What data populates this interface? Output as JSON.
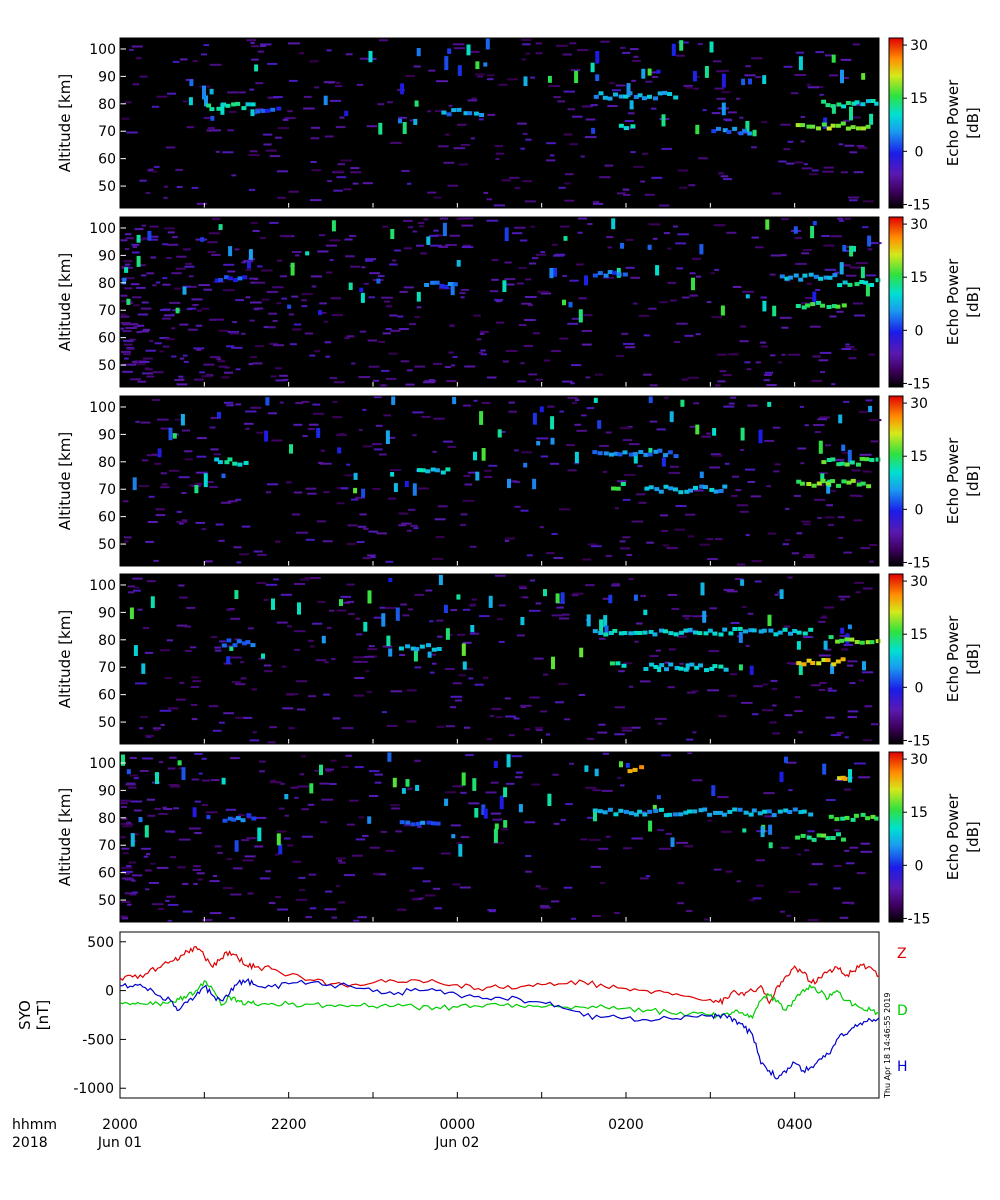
{
  "chart_data": [
    {
      "type": "heatmap",
      "panel": 1,
      "ylabel": "Altitude [km]",
      "ylim": [
        42,
        104
      ],
      "yticks": [
        50,
        60,
        70,
        80,
        90,
        100
      ],
      "colorbar": {
        "label_line1": "Echo Power",
        "label_line2": "[dB]",
        "ticks": [
          -15,
          0,
          15,
          30
        ],
        "range": [
          -16,
          32
        ]
      },
      "features": [
        {
          "t_start": 1.0,
          "t_end": 1.6,
          "alt": 79,
          "power": 14
        },
        {
          "t_start": 1.6,
          "t_end": 1.9,
          "alt": 78,
          "power": 5
        },
        {
          "t_start": 3.8,
          "t_end": 4.3,
          "alt": 77,
          "power": 8
        },
        {
          "t_start": 5.6,
          "t_end": 6.6,
          "alt": 83,
          "power": 10
        },
        {
          "t_start": 5.9,
          "t_end": 6.1,
          "alt": 71,
          "power": 16
        },
        {
          "t_start": 7.0,
          "t_end": 7.5,
          "alt": 70,
          "power": 6
        },
        {
          "t_start": 8.0,
          "t_end": 8.9,
          "alt": 72,
          "power": 22
        },
        {
          "t_start": 8.3,
          "t_end": 9.0,
          "alt": 80,
          "power": 14
        }
      ]
    },
    {
      "type": "heatmap",
      "panel": 2,
      "ylabel": "Altitude [km]",
      "ylim": [
        42,
        104
      ],
      "yticks": [
        50,
        60,
        70,
        80,
        90,
        100
      ],
      "colorbar": {
        "label_line1": "Echo Power",
        "label_line2": "[dB]",
        "ticks": [
          -15,
          0,
          15,
          30
        ],
        "range": [
          -16,
          32
        ]
      },
      "features": [
        {
          "t_start": 1.1,
          "t_end": 1.5,
          "alt": 81,
          "power": 4
        },
        {
          "t_start": 3.6,
          "t_end": 4.0,
          "alt": 79,
          "power": 6
        },
        {
          "t_start": 5.6,
          "t_end": 6.0,
          "alt": 83,
          "power": 6
        },
        {
          "t_start": 7.8,
          "t_end": 8.5,
          "alt": 82,
          "power": 10
        },
        {
          "t_start": 8.0,
          "t_end": 8.6,
          "alt": 72,
          "power": 18
        },
        {
          "t_start": 8.5,
          "t_end": 9.0,
          "alt": 80,
          "power": 14
        }
      ]
    },
    {
      "type": "heatmap",
      "panel": 3,
      "ylabel": "Altitude [km]",
      "ylim": [
        42,
        104
      ],
      "yticks": [
        50,
        60,
        70,
        80,
        90,
        100
      ],
      "colorbar": {
        "label_line1": "Echo Power",
        "label_line2": "[dB]",
        "ticks": [
          -15,
          0,
          15,
          30
        ],
        "range": [
          -16,
          32
        ]
      },
      "features": [
        {
          "t_start": 1.1,
          "t_end": 1.5,
          "alt": 80,
          "power": 14
        },
        {
          "t_start": 3.5,
          "t_end": 3.9,
          "alt": 77,
          "power": 12
        },
        {
          "t_start": 5.6,
          "t_end": 6.6,
          "alt": 83,
          "power": 8
        },
        {
          "t_start": 5.8,
          "t_end": 6.0,
          "alt": 71,
          "power": 18
        },
        {
          "t_start": 6.2,
          "t_end": 7.2,
          "alt": 70,
          "power": 10
        },
        {
          "t_start": 8.0,
          "t_end": 8.9,
          "alt": 72,
          "power": 20
        },
        {
          "t_start": 8.3,
          "t_end": 9.0,
          "alt": 80,
          "power": 18
        }
      ]
    },
    {
      "type": "heatmap",
      "panel": 4,
      "ylabel": "Altitude [km]",
      "ylim": [
        42,
        104
      ],
      "yticks": [
        50,
        60,
        70,
        80,
        90,
        100
      ],
      "colorbar": {
        "label_line1": "Echo Power",
        "label_line2": "[dB]",
        "ticks": [
          -15,
          0,
          15,
          30
        ],
        "range": [
          -16,
          32
        ]
      },
      "features": [
        {
          "t_start": 1.2,
          "t_end": 1.6,
          "alt": 79,
          "power": 6
        },
        {
          "t_start": 3.3,
          "t_end": 3.8,
          "alt": 77,
          "power": 10
        },
        {
          "t_start": 5.6,
          "t_end": 8.2,
          "alt": 83,
          "power": 12
        },
        {
          "t_start": 5.8,
          "t_end": 6.0,
          "alt": 71,
          "power": 16
        },
        {
          "t_start": 6.2,
          "t_end": 7.2,
          "alt": 70,
          "power": 12
        },
        {
          "t_start": 8.0,
          "t_end": 8.6,
          "alt": 72,
          "power": 26
        },
        {
          "t_start": 8.4,
          "t_end": 9.0,
          "alt": 80,
          "power": 20
        }
      ]
    },
    {
      "type": "heatmap",
      "panel": 5,
      "ylabel": "Altitude [km]",
      "ylim": [
        42,
        104
      ],
      "yticks": [
        50,
        60,
        70,
        80,
        90,
        100
      ],
      "colorbar": {
        "label_line1": "Echo Power",
        "label_line2": "[dB]",
        "ticks": [
          -15,
          0,
          15,
          30
        ],
        "range": [
          -16,
          32
        ]
      },
      "features": [
        {
          "t_start": 1.2,
          "t_end": 1.6,
          "alt": 80,
          "power": 6
        },
        {
          "t_start": 3.3,
          "t_end": 3.8,
          "alt": 78,
          "power": 6
        },
        {
          "t_start": 5.6,
          "t_end": 8.2,
          "alt": 82,
          "power": 10
        },
        {
          "t_start": 6.0,
          "t_end": 6.2,
          "alt": 98,
          "power": 28
        },
        {
          "t_start": 8.0,
          "t_end": 8.6,
          "alt": 73,
          "power": 18
        },
        {
          "t_start": 8.4,
          "t_end": 9.0,
          "alt": 80,
          "power": 18
        },
        {
          "t_start": 8.5,
          "t_end": 8.6,
          "alt": 95,
          "power": 26
        }
      ]
    },
    {
      "type": "line",
      "panel": 6,
      "ylabel_line1": "SYO",
      "ylabel_line2": "[nT]",
      "ylim": [
        -1100,
        600
      ],
      "yticks": [
        500,
        0,
        -500,
        -1000
      ],
      "x_hours_since_2000": [
        0.0,
        0.15,
        0.3,
        0.45,
        0.6,
        0.7,
        0.8,
        0.9,
        1.0,
        1.1,
        1.2,
        1.3,
        1.4,
        1.5,
        1.6,
        1.8,
        2.0,
        2.25,
        2.5,
        2.75,
        3.0,
        3.25,
        3.5,
        3.75,
        4.0,
        4.25,
        4.5,
        4.75,
        5.0,
        5.25,
        5.5,
        5.75,
        6.0,
        6.25,
        6.5,
        6.75,
        7.0,
        7.1,
        7.2,
        7.3,
        7.4,
        7.5,
        7.6,
        7.7,
        7.8,
        7.9,
        8.0,
        8.1,
        8.2,
        8.3,
        8.4,
        8.5,
        8.6,
        8.7,
        8.8,
        8.9,
        9.0
      ],
      "series": [
        {
          "name": "Z",
          "color": "#dd0000",
          "values": [
            130,
            140,
            170,
            230,
            300,
            320,
            400,
            450,
            350,
            240,
            330,
            400,
            330,
            260,
            240,
            220,
            160,
            110,
            70,
            60,
            80,
            100,
            110,
            90,
            60,
            20,
            30,
            40,
            60,
            70,
            90,
            40,
            20,
            0,
            -20,
            -60,
            -90,
            -120,
            -80,
            -10,
            -50,
            0,
            50,
            -130,
            50,
            150,
            250,
            180,
            80,
            130,
            200,
            240,
            150,
            200,
            260,
            240,
            150
          ]
        },
        {
          "name": "D",
          "color": "#00cc00",
          "values": [
            -120,
            -130,
            -140,
            -130,
            -110,
            -90,
            -50,
            0,
            100,
            10,
            -150,
            -60,
            -100,
            -130,
            -140,
            -130,
            -140,
            -140,
            -150,
            -150,
            -160,
            -160,
            -170,
            -170,
            -170,
            -160,
            -150,
            -160,
            -170,
            -170,
            -170,
            -170,
            -180,
            -200,
            -220,
            -240,
            -250,
            -260,
            -230,
            -200,
            -250,
            -280,
            -100,
            -50,
            -100,
            -200,
            -100,
            10,
            30,
            -20,
            -80,
            0,
            -100,
            -150,
            -180,
            -200,
            -230
          ]
        },
        {
          "name": "H",
          "color": "#0000cc",
          "values": [
            50,
            40,
            30,
            -50,
            -100,
            -200,
            -120,
            -50,
            40,
            -50,
            -100,
            -30,
            80,
            100,
            60,
            40,
            70,
            80,
            60,
            40,
            -10,
            -40,
            20,
            0,
            -40,
            -60,
            -70,
            -90,
            -120,
            -180,
            -260,
            -270,
            -280,
            -300,
            -280,
            -260,
            -260,
            -250,
            -280,
            -300,
            -380,
            -450,
            -750,
            -820,
            -900,
            -840,
            -740,
            -820,
            -780,
            -700,
            -650,
            -500,
            -450,
            -380,
            -350,
            -300,
            -280
          ]
        }
      ]
    }
  ],
  "x_axis": {
    "row_label": "hhmm",
    "year_label": "2018",
    "ticks": [
      {
        "hours": 0,
        "label": "2000",
        "date": "Jun 01"
      },
      {
        "hours": 2,
        "label": "2200",
        "date": ""
      },
      {
        "hours": 4,
        "label": "0000",
        "date": "Jun 02"
      },
      {
        "hours": 6,
        "label": "0200",
        "date": ""
      },
      {
        "hours": 8,
        "label": "0400",
        "date": ""
      }
    ],
    "minor_hours": [
      1,
      3,
      5,
      7
    ],
    "range_hours": [
      0,
      9
    ]
  },
  "timestamp": "Thu Apr 18 14:46:55 2019",
  "colors": {
    "background": "#000000",
    "frame": "#000000"
  }
}
